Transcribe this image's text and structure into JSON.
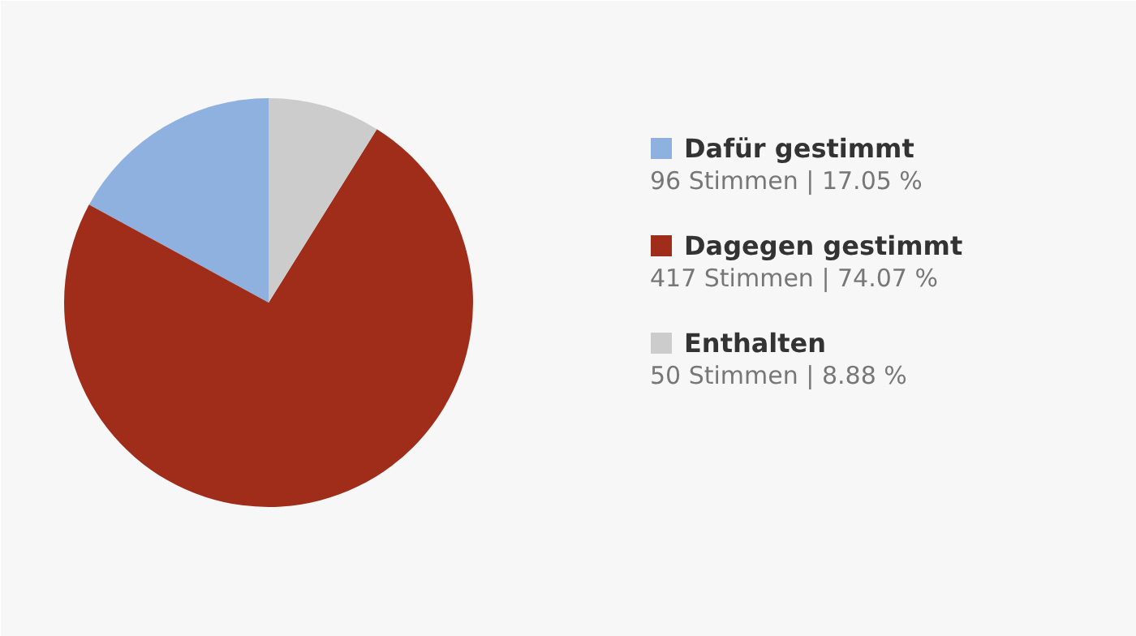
{
  "chart_data": {
    "type": "pie",
    "categories": [
      "Dafür gestimmt",
      "Dagegen gestimmt",
      "Enthalten"
    ],
    "values": [
      96,
      417,
      50
    ],
    "colors": [
      "#8fb1e0",
      "#a02c1a",
      "#cccccc"
    ],
    "value_labels": [
      "96 Stimmen | 17.05 %",
      "417 Stimmen | 74.07 %",
      "50 Stimmen | 8.88 %"
    ],
    "legend": "right"
  }
}
